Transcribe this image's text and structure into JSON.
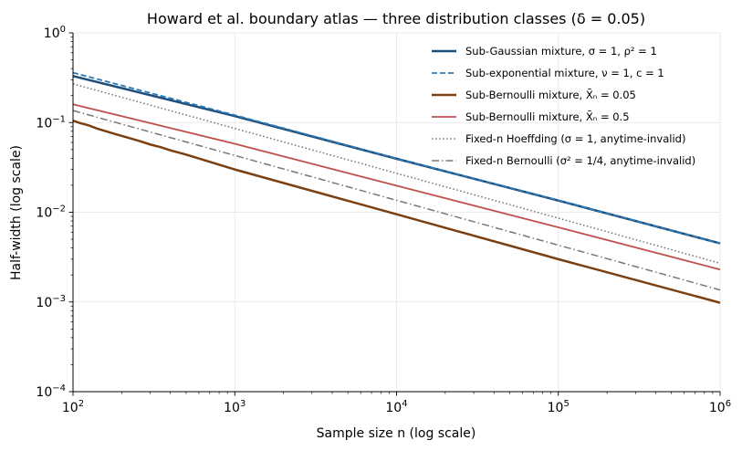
{
  "chart_data": {
    "type": "line",
    "title": "Howard et al. boundary atlas — three distribution classes",
    "title_param": "(δ = 0.05)",
    "xlabel": "Sample size n (log scale)",
    "ylabel": "Half-width (log scale)",
    "x_scale": "log",
    "y_scale": "log",
    "xlim": [
      100,
      1000000
    ],
    "ylim": [
      0.0001,
      1
    ],
    "x_ticks": [
      {
        "value": 100,
        "base": "10",
        "exp": "2"
      },
      {
        "value": 1000,
        "base": "10",
        "exp": "3"
      },
      {
        "value": 10000,
        "base": "10",
        "exp": "4"
      },
      {
        "value": 100000,
        "base": "10",
        "exp": "5"
      },
      {
        "value": 1000000,
        "base": "10",
        "exp": "6"
      }
    ],
    "y_ticks": [
      {
        "value": 0.0001,
        "base": "10",
        "exp": "−4"
      },
      {
        "value": 0.001,
        "base": "10",
        "exp": "−3"
      },
      {
        "value": 0.01,
        "base": "10",
        "exp": "−2"
      },
      {
        "value": 0.1,
        "base": "10",
        "exp": "−1"
      },
      {
        "value": 1,
        "base": "10",
        "exp": "0"
      }
    ],
    "grid": true,
    "legend_position": "top-right",
    "series": [
      {
        "name": "Sub-Gaussian mixture, σ = 1, ρ² = 1",
        "color": "#1f4e79",
        "style": "solid",
        "width": 2.5,
        "x": [
          100,
          1000,
          10000,
          100000,
          1000000
        ],
        "y": [
          0.33,
          0.118,
          0.0395,
          0.0135,
          0.0045
        ]
      },
      {
        "name": "Sub-exponential mixture, ν = 1, c = 1",
        "color": "#2b7bba",
        "style": "dashed",
        "width": 1.8,
        "x": [
          100,
          1000,
          10000,
          100000,
          1000000
        ],
        "y": [
          0.36,
          0.121,
          0.0398,
          0.0136,
          0.0045
        ]
      },
      {
        "name": "Sub-Bernoulli mixture, X̄ₙ = 0.05",
        "color": "#7b3f10",
        "style": "solid",
        "width": 2.5,
        "x": [
          100,
          110,
          125,
          140,
          160,
          180,
          200,
          230,
          260,
          300,
          350,
          400,
          500,
          1000,
          10000,
          100000,
          1000000
        ],
        "y": [
          0.105,
          0.099,
          0.093,
          0.086,
          0.08,
          0.075,
          0.071,
          0.066,
          0.062,
          0.057,
          0.053,
          0.049,
          0.044,
          0.03,
          0.0095,
          0.003,
          0.00098
        ]
      },
      {
        "name": "Sub-Bernoulli mixture, X̄ₙ = 0.5",
        "color": "#c0504d",
        "style": "solid",
        "width": 1.8,
        "x": [
          100,
          1000,
          10000,
          100000,
          1000000
        ],
        "y": [
          0.16,
          0.058,
          0.0198,
          0.0068,
          0.0023
        ]
      },
      {
        "name": "Fixed-n Hoeffding (σ = 1, anytime-invalid)",
        "color": "#707070",
        "style": "dotted",
        "width": 1.5,
        "x": [
          100,
          1000,
          10000,
          100000,
          1000000
        ],
        "y": [
          0.27,
          0.086,
          0.0272,
          0.0086,
          0.0027
        ]
      },
      {
        "name": "Fixed-n Bernoulli (σ² = 1/4, anytime-invalid)",
        "color": "#777777",
        "style": "dashdot",
        "width": 1.5,
        "x": [
          100,
          1000,
          10000,
          100000,
          1000000
        ],
        "y": [
          0.136,
          0.043,
          0.0136,
          0.0043,
          0.00136
        ]
      }
    ]
  }
}
